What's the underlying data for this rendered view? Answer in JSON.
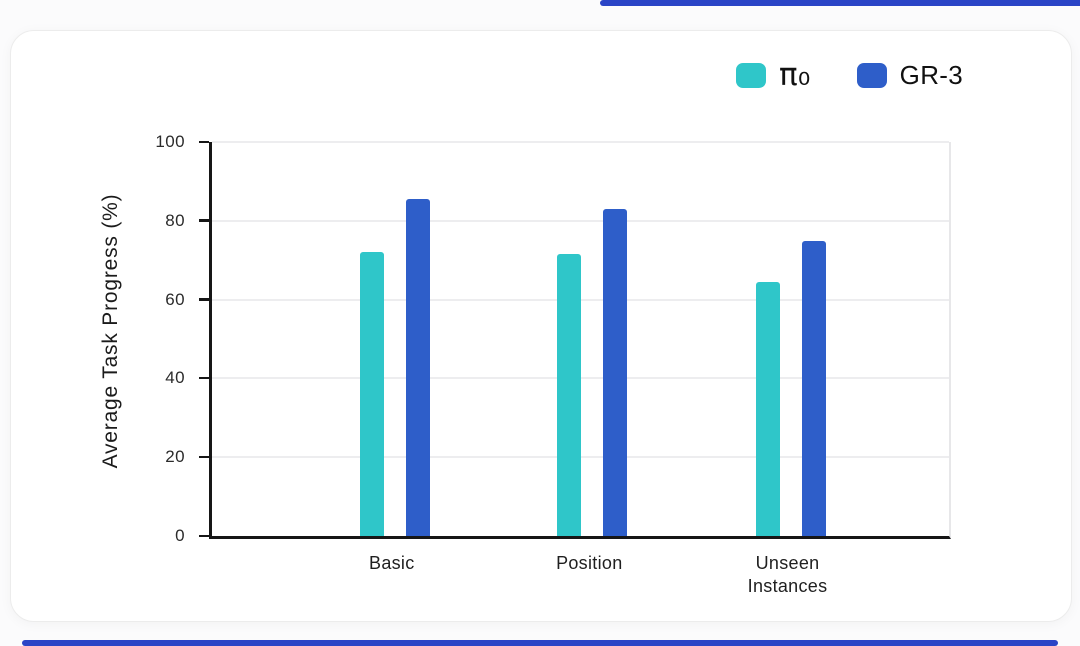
{
  "accents": {
    "stripe_color": "#2A44C6",
    "card_background": "#ffffff",
    "page_background": "#fbfbfc"
  },
  "chart_data": {
    "type": "bar",
    "title": "",
    "ylabel": "Average Task Progress (%)",
    "xlabel": "",
    "ylim": [
      0,
      100
    ],
    "yticks": [
      0,
      20,
      40,
      60,
      80,
      100
    ],
    "grid": true,
    "legend_position": "top-right",
    "categories": [
      "Basic",
      "Position",
      "Unseen\nInstances"
    ],
    "series": [
      {
        "name": "π₀",
        "color": "#2FC6C9",
        "values": [
          72,
          71.5,
          64.5
        ]
      },
      {
        "name": "GR-3",
        "color": "#2E5EC9",
        "values": [
          85.5,
          83,
          75
        ]
      }
    ]
  }
}
